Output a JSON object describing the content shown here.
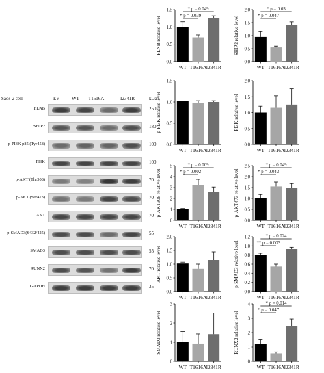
{
  "wb": {
    "cell_label": "Saos-2 cell",
    "lanes": [
      "EV",
      "WT",
      "T1616A",
      "I2341R"
    ],
    "kda_header": "kDa",
    "rows": [
      {
        "label": "FLNB",
        "kda": "250",
        "intensity": [
          0.85,
          0.8,
          0.55,
          0.85
        ]
      },
      {
        "label": "SHIP2",
        "kda": "180",
        "intensity": [
          0.7,
          0.7,
          0.55,
          0.75
        ]
      },
      {
        "label": "p-PI3K p85 (Tyr458)",
        "kda": "100",
        "intensity": [
          0.55,
          0.6,
          0.6,
          0.75
        ]
      },
      {
        "label": "PI3K",
        "kda": "100",
        "intensity": [
          0.8,
          0.8,
          0.8,
          0.8
        ]
      },
      {
        "label": "p-AKT (Thr308)",
        "kda": "70",
        "intensity": [
          0.45,
          0.4,
          0.9,
          0.85
        ]
      },
      {
        "label": "p-AKT (Ser473)",
        "kda": "70",
        "intensity": [
          0.5,
          0.45,
          0.8,
          0.75
        ]
      },
      {
        "label": "AKT",
        "kda": "70",
        "intensity": [
          0.8,
          0.8,
          0.8,
          0.8
        ]
      },
      {
        "label": "p-SMAD3(S432/425)",
        "kda": "55",
        "intensity": [
          0.75,
          0.75,
          0.55,
          0.8
        ]
      },
      {
        "label": "SMAD3",
        "kda": "55",
        "intensity": [
          0.75,
          0.75,
          0.75,
          0.75
        ]
      },
      {
        "label": "RUNX2",
        "kda": "70",
        "intensity": [
          0.75,
          0.7,
          0.5,
          0.85
        ]
      },
      {
        "label": "GAPDH",
        "kda": "35",
        "intensity": [
          0.85,
          0.85,
          0.85,
          0.85
        ]
      }
    ]
  },
  "chart_data": [
    {
      "type": "bar",
      "ylabel": "FLNB relative level",
      "categories": [
        "WT",
        "T1616A",
        "I2341R"
      ],
      "values": [
        1.0,
        0.7,
        1.25
      ],
      "errors": [
        0.15,
        0.07,
        0.07
      ],
      "ylim": [
        0,
        1.5
      ],
      "yticks": [
        "0.0",
        "0.5",
        "1.0",
        "1.5"
      ],
      "annotations": [
        {
          "text": "* p = 0.049",
          "from": 0,
          "to": 2
        },
        {
          "text": "* p = 0.039",
          "from": 0,
          "to": 1
        }
      ]
    },
    {
      "type": "bar",
      "ylabel": "SHIP2 relative level",
      "categories": [
        "WT",
        "T1616A",
        "I2341R"
      ],
      "values": [
        0.95,
        0.55,
        1.4
      ],
      "errors": [
        0.2,
        0.05,
        0.13
      ],
      "ylim": [
        0,
        2.0
      ],
      "yticks": [
        "0.0",
        "0.5",
        "1.0",
        "1.5",
        "2.0"
      ],
      "annotations": [
        {
          "text": "* p = 0.03",
          "from": 0,
          "to": 2
        },
        {
          "text": "* p = 0.047",
          "from": 0,
          "to": 1
        }
      ]
    },
    {
      "type": "bar",
      "ylabel": "p-PI3K relative level",
      "categories": [
        "WT",
        "T1616A",
        "I2341R"
      ],
      "values": [
        1.03,
        0.97,
        1.0
      ],
      "errors": [
        0.0,
        0.06,
        0.03
      ],
      "ylim": [
        0,
        1.5
      ],
      "yticks": [
        "0.0",
        "0.5",
        "1.0",
        "1.5"
      ],
      "annotations": []
    },
    {
      "type": "bar",
      "ylabel": "PI3K relative level",
      "categories": [
        "WT",
        "T1616A",
        "I2341R"
      ],
      "values": [
        1.0,
        1.15,
        1.25
      ],
      "errors": [
        0.2,
        0.38,
        0.5
      ],
      "ylim": [
        0,
        2.0
      ],
      "yticks": [
        "0.0",
        "0.5",
        "1.0",
        "1.5",
        "2.0"
      ],
      "annotations": []
    },
    {
      "type": "bar",
      "ylabel": "p-AKT308 relative level",
      "categories": [
        "WT",
        "T1616A",
        "I2341R"
      ],
      "values": [
        1.0,
        3.2,
        2.6
      ],
      "errors": [
        0.08,
        0.55,
        0.45
      ],
      "ylim": [
        0,
        5
      ],
      "yticks": [
        "0",
        "1",
        "2",
        "3",
        "4",
        "5"
      ],
      "annotations": [
        {
          "text": "* p = 0.009",
          "from": 0,
          "to": 2
        },
        {
          "text": "* p = 0.002",
          "from": 0,
          "to": 1
        }
      ]
    },
    {
      "type": "bar",
      "ylabel": "p-AKT473 relative level",
      "categories": [
        "WT",
        "T1616A",
        "I2341R"
      ],
      "values": [
        1.0,
        1.55,
        1.5
      ],
      "errors": [
        0.18,
        0.2,
        0.18
      ],
      "ylim": [
        0,
        2.5
      ],
      "yticks": [
        "0.0",
        "0.5",
        "1.0",
        "1.5",
        "2.0",
        "2.5"
      ],
      "annotations": [
        {
          "text": "* p = 0.049",
          "from": 0,
          "to": 2
        },
        {
          "text": "* p = 0.043",
          "from": 0,
          "to": 1
        }
      ]
    },
    {
      "type": "bar",
      "ylabel": "AKT relative level",
      "categories": [
        "WT",
        "T1616A",
        "I2341R"
      ],
      "values": [
        1.02,
        0.83,
        1.15
      ],
      "errors": [
        0.05,
        0.17,
        0.3
      ],
      "ylim": [
        0,
        2.0
      ],
      "yticks": [
        "0.0",
        "0.5",
        "1.0",
        "1.5",
        "2.0"
      ],
      "annotations": []
    },
    {
      "type": "bar",
      "ylabel": "p-SMAD3 relative level",
      "categories": [
        "WT",
        "T1616A",
        "I2341R"
      ],
      "values": [
        0.8,
        0.55,
        0.93
      ],
      "errors": [
        0.04,
        0.05,
        0.04
      ],
      "ylim": [
        0,
        1.2
      ],
      "yticks": [
        "0.0",
        "0.2",
        "0.4",
        "0.6",
        "0.8",
        "1.0",
        "1.2"
      ],
      "annotations": [
        {
          "text": "* p = 0.024",
          "from": 0,
          "to": 2
        },
        {
          "text": "** p = 0.003",
          "from": 0,
          "to": 1
        }
      ]
    },
    {
      "type": "bar",
      "ylabel": "SMAD3 relative level",
      "categories": [
        "WT",
        "T1616A",
        "I2341R"
      ],
      "values": [
        1.0,
        0.93,
        1.42
      ],
      "errors": [
        0.55,
        0.5,
        1.1
      ],
      "ylim": [
        0,
        3
      ],
      "yticks": [
        "0",
        "1",
        "2",
        "3"
      ],
      "annotations": []
    },
    {
      "type": "bar",
      "ylabel": "RUNX2 relative level",
      "categories": [
        "WT",
        "T1616A",
        "I2341R"
      ],
      "values": [
        1.2,
        0.55,
        2.45
      ],
      "errors": [
        0.3,
        0.1,
        0.5
      ],
      "ylim": [
        0,
        4
      ],
      "yticks": [
        "0",
        "1",
        "2",
        "3",
        "4"
      ],
      "annotations": [
        {
          "text": "* p = 0.014",
          "from": 0,
          "to": 2
        },
        {
          "text": "* p = 0.047",
          "from": 0,
          "to": 1
        }
      ]
    }
  ],
  "colors": {
    "wt": "#000000",
    "t1616a": "#a6a6a6",
    "i2341r": "#6e6e6e"
  }
}
